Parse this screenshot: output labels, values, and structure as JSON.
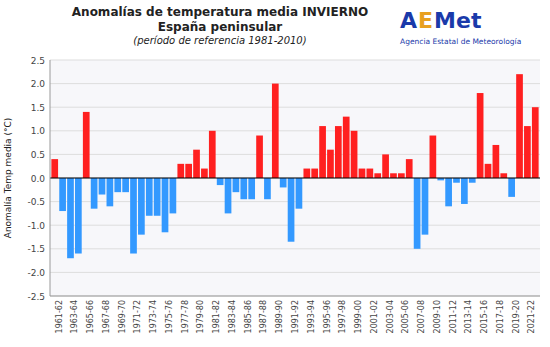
{
  "chart_data": {
    "type": "bar",
    "title": "Anomalías de temperatura media INVIERNO",
    "subtitle": [
      "España peninsular",
      "(período de referencia 1981-2010)"
    ],
    "y_label": "Anomalía Temp media (°C)",
    "annotations": [
      {
        "text": "A",
        "color": "#1a3aaa"
      },
      {
        "text": "E",
        "color": "#e8a020"
      },
      {
        "text": "Met",
        "color": "#1a3aaa"
      },
      {
        "text": "Agencia Estatal de Meteorología",
        "color": "#1a3aaa"
      }
    ],
    "categories": [
      "1961-62",
      null,
      "1963-64",
      null,
      "1965-66",
      null,
      "1967-68",
      null,
      "1969-70",
      null,
      "1971-72",
      null,
      "1973-74",
      null,
      "1975-76",
      null,
      "1977-78",
      null,
      "1979-80",
      null,
      "1981-82",
      null,
      "1983-84",
      null,
      "1985-86",
      null,
      "1987-88",
      null,
      "1989-90",
      null,
      "1991-92",
      null,
      "1993-94",
      null,
      "1995-96",
      null,
      "1997-98",
      null,
      "1999-00",
      null,
      "2001-02",
      null,
      "2003-04",
      null,
      "2005-06",
      null,
      "2007-08",
      null,
      "2009-10",
      null,
      "2011-12",
      null,
      "2013-14",
      null,
      "2015-16",
      null,
      "2017-18",
      null,
      "2019-20",
      null,
      "2021-22",
      null
    ],
    "values": [
      0.4,
      -0.7,
      -1.7,
      -1.6,
      1.4,
      -0.65,
      -0.35,
      -0.6,
      -0.3,
      -0.3,
      -1.6,
      -1.2,
      -0.8,
      -0.8,
      -1.15,
      -0.75,
      0.3,
      0.3,
      0.6,
      0.2,
      1.0,
      -0.15,
      -0.75,
      -0.3,
      -0.45,
      -0.45,
      0.9,
      -0.45,
      2.0,
      -0.2,
      -1.35,
      -0.65,
      0.2,
      0.2,
      1.1,
      0.6,
      1.1,
      1.3,
      1.0,
      0.2,
      0.2,
      0.1,
      0.5,
      0.1,
      0.1,
      0.4,
      -1.5,
      -1.2,
      0.9,
      -0.05,
      -0.6,
      -0.1,
      -0.55,
      -0.1,
      1.8,
      0.3,
      0.7,
      0.1,
      -0.4,
      2.2,
      1.1,
      1.5
    ],
    "colors": [
      "#FF2020",
      "#3399FF",
      "#3399FF",
      "#3399FF",
      "#FF2020",
      "#3399FF",
      "#3399FF",
      "#3399FF",
      "#3399FF",
      "#3399FF",
      "#3399FF",
      "#3399FF",
      "#3399FF",
      "#3399FF",
      "#3399FF",
      "#3399FF",
      "#FF2020",
      "#FF2020",
      "#FF2020",
      "#FF2020",
      "#FF2020",
      "#3399FF",
      "#3399FF",
      "#3399FF",
      "#3399FF",
      "#3399FF",
      "#FF2020",
      "#3399FF",
      "#FF2020",
      "#3399FF",
      "#3399FF",
      "#3399FF",
      "#FF2020",
      "#FF2020",
      "#FF2020",
      "#FF2020",
      "#FF2020",
      "#FF2020",
      "#FF2020",
      "#FF2020",
      "#FF2020",
      "#FF2020",
      "#FF2020",
      "#FF2020",
      "#FF2020",
      "#FF2020",
      "#3399FF",
      "#3399FF",
      "#FF2020",
      "#3399FF",
      "#3399FF",
      "#3399FF",
      "#3399FF",
      "#3399FF",
      "#FF2020",
      "#FF2020",
      "#FF2020",
      "#FF2020",
      "#3399FF",
      "#FF2020",
      "#FF2020",
      "#FF2020"
    ],
    "ylim": [
      -2.5,
      2.5
    ],
    "yticks": [
      -2.5,
      {
        "value": -2.0,
        "label": "-2.0"
      },
      -1.5,
      {
        "value": -1.0,
        "label": "-1.0"
      },
      -0.5,
      {
        "value": 0.0,
        "label": "0.0"
      },
      0.5,
      {
        "value": 1.0,
        "label": "1.0"
      },
      1.5,
      {
        "value": 2.0,
        "label": "2.0"
      },
      2.5
    ],
    "grid": true
  }
}
